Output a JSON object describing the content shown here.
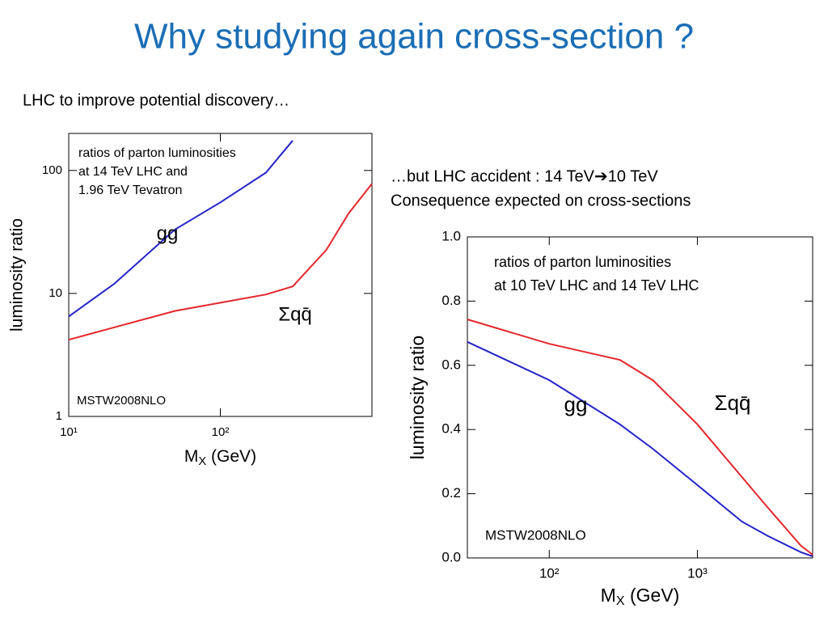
{
  "title": "Why studying again cross-section ?",
  "text_left": "LHC to improve potential discovery…",
  "text_right": [
    "…but LHC accident : 14 TeV➔10 TeV",
    "Consequence expected on cross-sections"
  ],
  "chart_data": [
    {
      "type": "line",
      "xlog": true,
      "ylog": true,
      "note": [
        "ratios of parton luminosities",
        "at 14 TeV LHC and",
        "1.96 TeV Tevatron"
      ],
      "annotation": "MSTW2008NLO",
      "xlabel": [
        "M",
        "X",
        " (GeV)"
      ],
      "ylabel": "luminosity ratio",
      "xlim": [
        10,
        1000
      ],
      "ylim": [
        1,
        200
      ],
      "xticks": [
        {
          "value": 10,
          "label": "10¹"
        },
        {
          "value": 100,
          "label": "10²"
        }
      ],
      "yticks": [
        1,
        10,
        100
      ],
      "series": [
        {
          "name": "gg",
          "color": "#2323c8",
          "x": [
            10,
            20,
            50,
            100,
            200,
            300
          ],
          "values": [
            6.5,
            12,
            33,
            55,
            96,
            175
          ]
        },
        {
          "name": "Σqq̄",
          "color": "#e4262b",
          "x": [
            10,
            20,
            50,
            100,
            200,
            300,
            500,
            700,
            1000
          ],
          "values": [
            4.2,
            5.3,
            7.2,
            8.4,
            9.8,
            11.4,
            22.6,
            44.6,
            78
          ]
        }
      ]
    },
    {
      "type": "line",
      "xlog": true,
      "ylog": false,
      "note": [
        "ratios of parton luminosities",
        "at 10 TeV LHC and 14 TeV LHC"
      ],
      "annotation": "MSTW2008NLO",
      "xlabel": [
        "M",
        "X",
        " (GeV)"
      ],
      "ylabel": "luminosity ratio",
      "xlim": [
        28,
        6000
      ],
      "ylim": [
        0,
        1
      ],
      "xticks": [
        {
          "value": 100,
          "label": "10²"
        },
        {
          "value": 1000,
          "label": "10³"
        }
      ],
      "yticks": [
        {
          "value": 0,
          "label": "0.0"
        },
        {
          "value": 0.2,
          "label": "0.2"
        },
        {
          "value": 0.4,
          "label": "0.4"
        },
        {
          "value": 0.6,
          "label": "0.6"
        },
        {
          "value": 0.8,
          "label": "0.8"
        },
        {
          "value": 1,
          "label": "1.0"
        }
      ],
      "series": [
        {
          "name": "gg",
          "color": "#2323c8",
          "x": [
            28,
            100,
            300,
            500,
            1000,
            2000,
            3000,
            5000,
            6000
          ],
          "values": [
            0.673,
            0.554,
            0.416,
            0.34,
            0.227,
            0.113,
            0.068,
            0.018,
            0.005
          ]
        },
        {
          "name": "Σqq̄",
          "color": "#e4262b",
          "x": [
            28,
            100,
            300,
            500,
            1000,
            2000,
            3000,
            5000,
            6000
          ],
          "values": [
            0.743,
            0.667,
            0.617,
            0.554,
            0.416,
            0.252,
            0.156,
            0.038,
            0.01
          ]
        }
      ]
    }
  ]
}
